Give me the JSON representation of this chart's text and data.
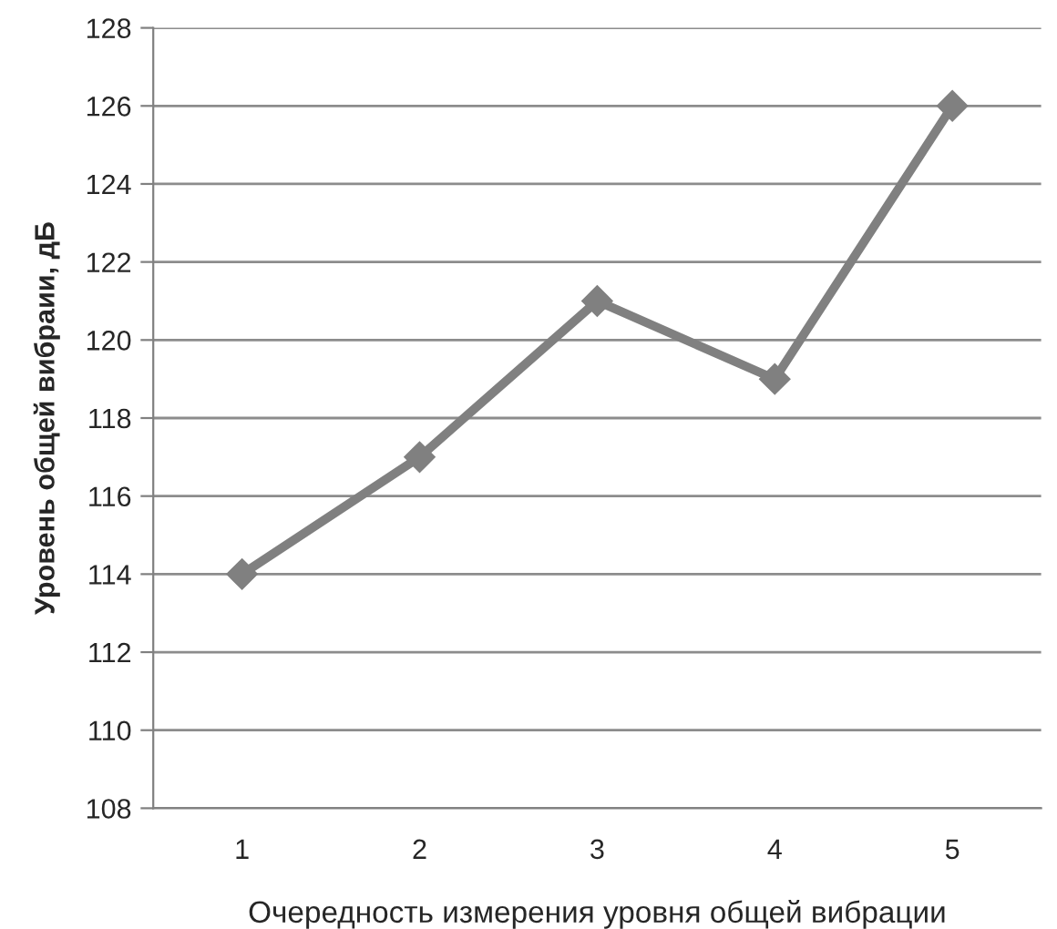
{
  "chart_data": {
    "type": "line",
    "xlabel": "Очередность измерения уровня общей вибрации",
    "ylabel": "Уровень общей вибраии, дБ",
    "categories": [
      "1",
      "2",
      "3",
      "4",
      "5"
    ],
    "series": [
      {
        "color": "#808080",
        "values": [
          114,
          117,
          121,
          119,
          126
        ]
      }
    ],
    "ylim": [
      108,
      128
    ],
    "yticks": [
      108,
      110,
      112,
      114,
      116,
      118,
      120,
      122,
      124,
      126,
      128
    ],
    "grid": "y",
    "marker": "diamond",
    "line_style": "solid"
  }
}
